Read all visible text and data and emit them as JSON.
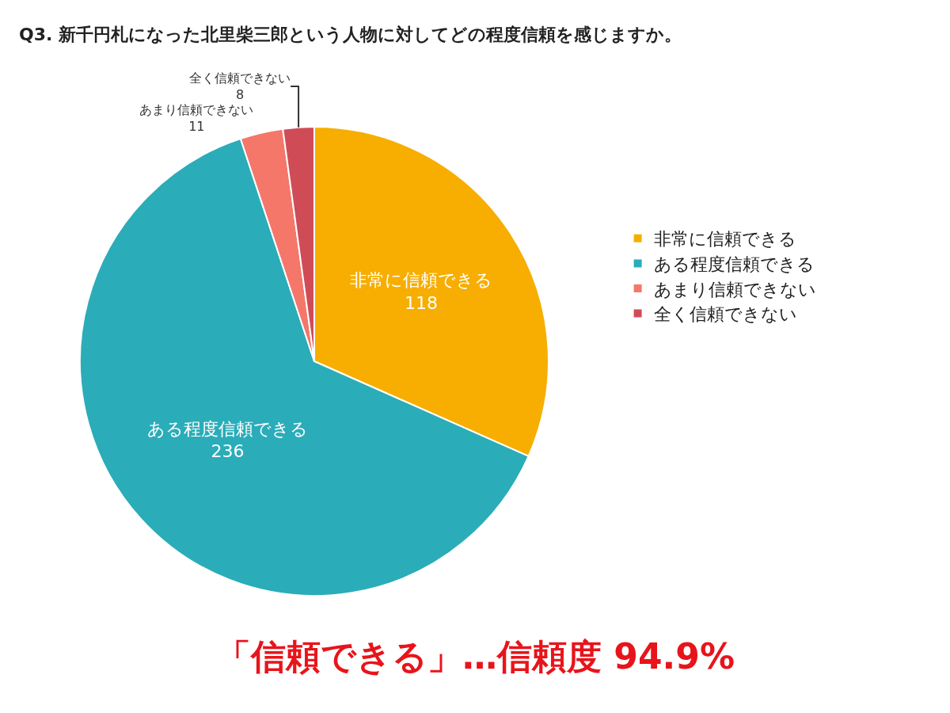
{
  "chart_data": {
    "type": "pie",
    "title": "Q3. 新千円札になった北里柴三郎という人物に対してどの程度信頼を感じますか。",
    "categories": [
      "非常に信頼できる",
      "ある程度信頼できる",
      "あまり信頼できない",
      "全く信頼できない"
    ],
    "values": [
      118,
      236,
      11,
      8
    ],
    "colors": [
      "#f7ae00",
      "#2bacb9",
      "#f4776a",
      "#cf4c57"
    ],
    "data_labels": true,
    "legend": "right",
    "annotations": [
      "「信頼できる」…信頼度 94.9%"
    ]
  }
}
